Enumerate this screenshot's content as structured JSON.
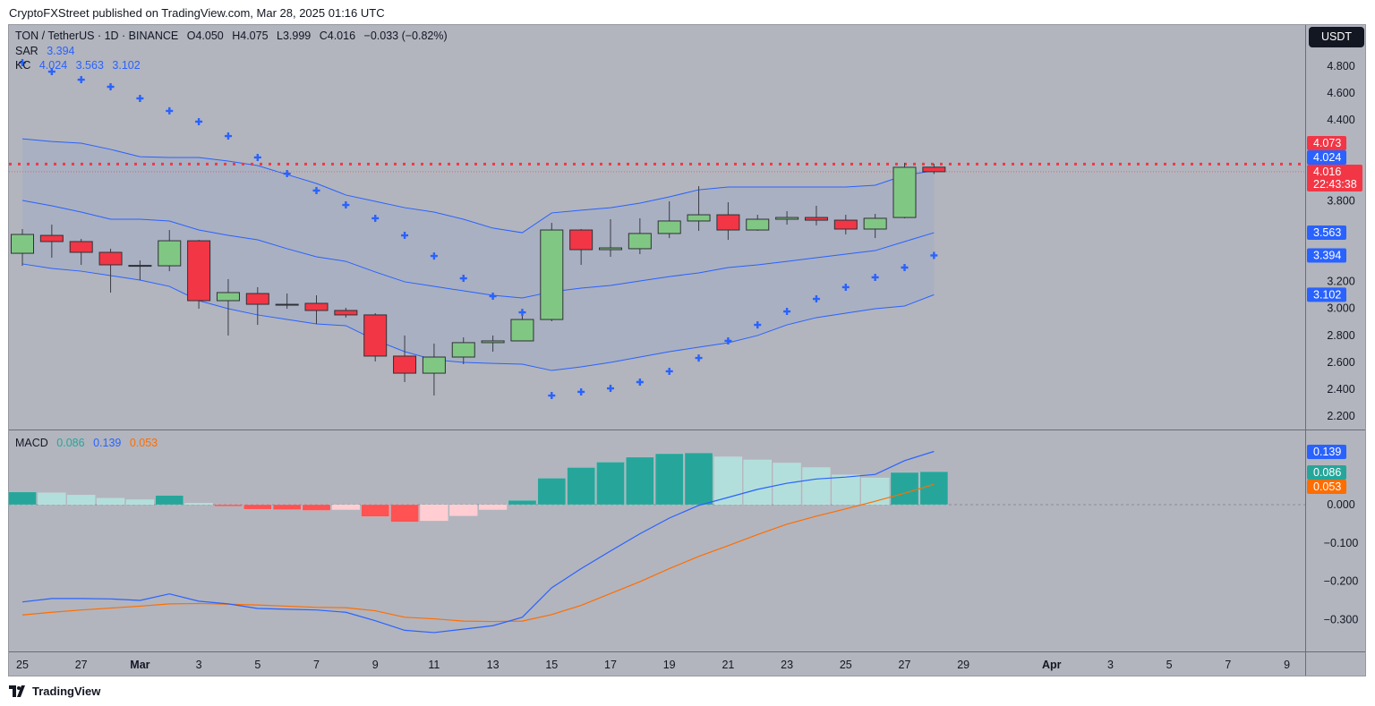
{
  "header": {
    "published": "CryptoFXStreet published on TradingView.com, Mar 28, 2025 01:16 UTC",
    "symbol": "TON / TetherUS · 1D · BINANCE",
    "open": "O4.050",
    "high": "H4.075",
    "low": "L3.999",
    "close": "C4.016",
    "change": "−0.033 (−0.82%)",
    "currency_button": "USDT"
  },
  "indicators": {
    "sar": {
      "label": "SAR",
      "value": "3.394"
    },
    "kc": {
      "label": "KC",
      "upper": "4.024",
      "middle": "3.563",
      "lower": "3.102"
    },
    "macd": {
      "label": "MACD",
      "hist": "0.086",
      "macd": "0.139",
      "signal": "0.053"
    }
  },
  "footer": {
    "brand": "TradingView"
  },
  "colors": {
    "background": "#b2b5be",
    "up_candle": "#81c784",
    "down_candle": "#f23645",
    "kc_line": "#2962ff",
    "sar": "#2962ff",
    "macd_line": "#2962ff",
    "signal_line": "#ff6d00",
    "hist_up_strong": "#26a69a",
    "hist_up_weak": "#b2dfdb",
    "hist_down_strong": "#ff5252",
    "hist_down_weak": "#ffcdd2",
    "price_line": "#f23645"
  },
  "chart_data": [
    {
      "type": "candlestick",
      "title": "TON / TetherUS · 1D · BINANCE",
      "x": [
        "2025-02-25",
        "2025-02-26",
        "2025-02-27",
        "2025-02-28",
        "2025-03-01",
        "2025-03-02",
        "2025-03-03",
        "2025-03-04",
        "2025-03-05",
        "2025-03-06",
        "2025-03-07",
        "2025-03-08",
        "2025-03-09",
        "2025-03-10",
        "2025-03-11",
        "2025-03-12",
        "2025-03-13",
        "2025-03-14",
        "2025-03-15",
        "2025-03-16",
        "2025-03-17",
        "2025-03-18",
        "2025-03-19",
        "2025-03-20",
        "2025-03-21",
        "2025-03-22",
        "2025-03-23",
        "2025-03-24",
        "2025-03-25",
        "2025-03-26",
        "2025-03-27",
        "2025-03-28"
      ],
      "ohlc": [
        [
          3.41,
          3.59,
          3.317,
          3.55
        ],
        [
          3.543,
          3.623,
          3.377,
          3.497
        ],
        [
          3.497,
          3.517,
          3.324,
          3.417
        ],
        [
          3.417,
          3.444,
          3.118,
          3.324
        ],
        [
          3.317,
          3.357,
          3.211,
          3.32
        ],
        [
          3.317,
          3.583,
          3.277,
          3.503
        ],
        [
          3.503,
          3.51,
          2.998,
          3.058
        ],
        [
          3.058,
          3.218,
          2.799,
          3.118
        ],
        [
          3.111,
          3.158,
          2.878,
          3.031
        ],
        [
          3.025,
          3.111,
          2.998,
          3.031
        ],
        [
          3.038,
          3.098,
          2.885,
          2.985
        ],
        [
          2.985,
          3.005,
          2.932,
          2.952
        ],
        [
          2.952,
          2.965,
          2.606,
          2.646
        ],
        [
          2.646,
          2.799,
          2.453,
          2.519
        ],
        [
          2.519,
          2.739,
          2.353,
          2.639
        ],
        [
          2.639,
          2.785,
          2.586,
          2.746
        ],
        [
          2.746,
          2.799,
          2.679,
          2.759
        ],
        [
          2.759,
          2.952,
          2.759,
          2.918
        ],
        [
          2.918,
          3.636,
          2.905,
          3.583
        ],
        [
          3.583,
          3.59,
          3.324,
          3.437
        ],
        [
          3.437,
          3.663,
          3.384,
          3.45
        ],
        [
          3.444,
          3.67,
          3.404,
          3.557
        ],
        [
          3.557,
          3.796,
          3.523,
          3.65
        ],
        [
          3.65,
          3.909,
          3.577,
          3.696
        ],
        [
          3.696,
          3.789,
          3.51,
          3.583
        ],
        [
          3.583,
          3.696,
          3.577,
          3.663
        ],
        [
          3.663,
          3.723,
          3.623,
          3.676
        ],
        [
          3.676,
          3.763,
          3.617,
          3.656
        ],
        [
          3.656,
          3.696,
          3.55,
          3.59
        ],
        [
          3.59,
          3.703,
          3.523,
          3.67
        ],
        [
          3.676,
          4.082,
          3.67,
          4.049
        ],
        [
          4.05,
          4.075,
          3.999,
          4.016
        ]
      ],
      "kc_upper": [
        4.261,
        4.241,
        4.228,
        4.182,
        4.128,
        4.122,
        4.122,
        4.095,
        4.062,
        3.995,
        3.929,
        3.843,
        3.796,
        3.749,
        3.716,
        3.663,
        3.597,
        3.563,
        3.71,
        3.73,
        3.749,
        3.783,
        3.829,
        3.882,
        3.902,
        3.902,
        3.902,
        3.902,
        3.902,
        3.916,
        3.989,
        4.024
      ],
      "kc_middle": [
        3.803,
        3.763,
        3.716,
        3.663,
        3.663,
        3.65,
        3.583,
        3.543,
        3.51,
        3.444,
        3.384,
        3.35,
        3.271,
        3.198,
        3.164,
        3.131,
        3.098,
        3.078,
        3.124,
        3.151,
        3.171,
        3.204,
        3.237,
        3.264,
        3.304,
        3.324,
        3.35,
        3.377,
        3.404,
        3.43,
        3.497,
        3.563
      ],
      "kc_lower": [
        3.331,
        3.297,
        3.277,
        3.244,
        3.211,
        3.164,
        3.058,
        2.998,
        2.952,
        2.918,
        2.885,
        2.872,
        2.765,
        2.679,
        2.619,
        2.599,
        2.592,
        2.586,
        2.539,
        2.566,
        2.599,
        2.639,
        2.679,
        2.712,
        2.745,
        2.799,
        2.878,
        2.932,
        2.965,
        2.998,
        3.018,
        3.102
      ],
      "sar": [
        4.827,
        4.76,
        4.7,
        4.647,
        4.561,
        4.468,
        4.388,
        4.281,
        4.122,
        4.002,
        3.876,
        3.769,
        3.67,
        3.543,
        3.39,
        3.224,
        3.091,
        2.971,
        2.353,
        2.38,
        2.406,
        2.453,
        2.533,
        2.632,
        2.759,
        2.878,
        2.978,
        3.071,
        3.158,
        3.231,
        3.304,
        3.394
      ],
      "horizontal_line": 4.073,
      "last_price": 4.016,
      "countdown": "22:43:38",
      "price_labels": [
        {
          "value": "4.073",
          "color": "#f23645"
        },
        {
          "value": "4.024",
          "color": "#2962ff"
        },
        {
          "value": "3.563",
          "color": "#2962ff"
        },
        {
          "value": "3.394",
          "color": "#2962ff"
        },
        {
          "value": "3.102",
          "color": "#2962ff"
        }
      ],
      "y_ticks": [
        "4.800",
        "4.600",
        "4.400",
        "3.800",
        "3.200",
        "3.000",
        "2.800",
        "2.600",
        "2.400",
        "2.200"
      ],
      "ylim": [
        2.1,
        4.95
      ],
      "x_ticks": [
        {
          "label": "25",
          "date": "2025-02-25"
        },
        {
          "label": "27",
          "date": "2025-02-27"
        },
        {
          "label": "Mar",
          "date": "2025-03-01"
        },
        {
          "label": "3",
          "date": "2025-03-03"
        },
        {
          "label": "5",
          "date": "2025-03-05"
        },
        {
          "label": "7",
          "date": "2025-03-07"
        },
        {
          "label": "9",
          "date": "2025-03-09"
        },
        {
          "label": "11",
          "date": "2025-03-11"
        },
        {
          "label": "13",
          "date": "2025-03-13"
        },
        {
          "label": "15",
          "date": "2025-03-15"
        },
        {
          "label": "17",
          "date": "2025-03-17"
        },
        {
          "label": "19",
          "date": "2025-03-19"
        },
        {
          "label": "21",
          "date": "2025-03-21"
        },
        {
          "label": "23",
          "date": "2025-03-23"
        },
        {
          "label": "25",
          "date": "2025-03-25"
        },
        {
          "label": "27",
          "date": "2025-03-27"
        },
        {
          "label": "29",
          "date": "2025-03-29"
        },
        {
          "label": "Apr",
          "date": "2025-04-01"
        },
        {
          "label": "3",
          "date": "2025-04-03"
        },
        {
          "label": "5",
          "date": "2025-04-05"
        },
        {
          "label": "7",
          "date": "2025-04-07"
        },
        {
          "label": "9",
          "date": "2025-04-09"
        }
      ]
    },
    {
      "type": "bar+line",
      "title": "MACD",
      "histogram": [
        0.033,
        0.031,
        0.025,
        0.017,
        0.013,
        0.024,
        0.004,
        -0.004,
        -0.012,
        -0.013,
        -0.015,
        -0.013,
        -0.031,
        -0.045,
        -0.042,
        -0.029,
        -0.013,
        0.011,
        0.069,
        0.097,
        0.111,
        0.124,
        0.133,
        0.135,
        0.125,
        0.117,
        0.109,
        0.097,
        0.078,
        0.07,
        0.084,
        0.086
      ],
      "macd": [
        -0.254,
        -0.245,
        -0.245,
        -0.246,
        -0.25,
        -0.233,
        -0.252,
        -0.259,
        -0.271,
        -0.273,
        -0.275,
        -0.281,
        -0.303,
        -0.328,
        -0.334,
        -0.325,
        -0.316,
        -0.294,
        -0.217,
        -0.167,
        -0.121,
        -0.076,
        -0.035,
        -0.002,
        0.019,
        0.04,
        0.056,
        0.067,
        0.072,
        0.079,
        0.115,
        0.139
      ],
      "signal": [
        -0.288,
        -0.281,
        -0.275,
        -0.27,
        -0.265,
        -0.259,
        -0.258,
        -0.26,
        -0.262,
        -0.265,
        -0.268,
        -0.269,
        -0.277,
        -0.294,
        -0.298,
        -0.304,
        -0.305,
        -0.304,
        -0.287,
        -0.263,
        -0.232,
        -0.201,
        -0.167,
        -0.135,
        -0.107,
        -0.078,
        -0.051,
        -0.03,
        -0.011,
        0.009,
        0.03,
        0.053
      ],
      "value_labels": [
        {
          "value": "0.139",
          "color": "#2962ff"
        },
        {
          "value": "0.086",
          "color": "#26a69a"
        },
        {
          "value": "0.053",
          "color": "#ff6d00"
        }
      ],
      "y_ticks": [
        {
          "label": "0.000",
          "value": 0
        },
        {
          "label": "−0.100",
          "value": -0.1
        },
        {
          "label": "−0.200",
          "value": -0.2
        },
        {
          "label": "−0.300",
          "value": -0.3
        }
      ]
    }
  ]
}
